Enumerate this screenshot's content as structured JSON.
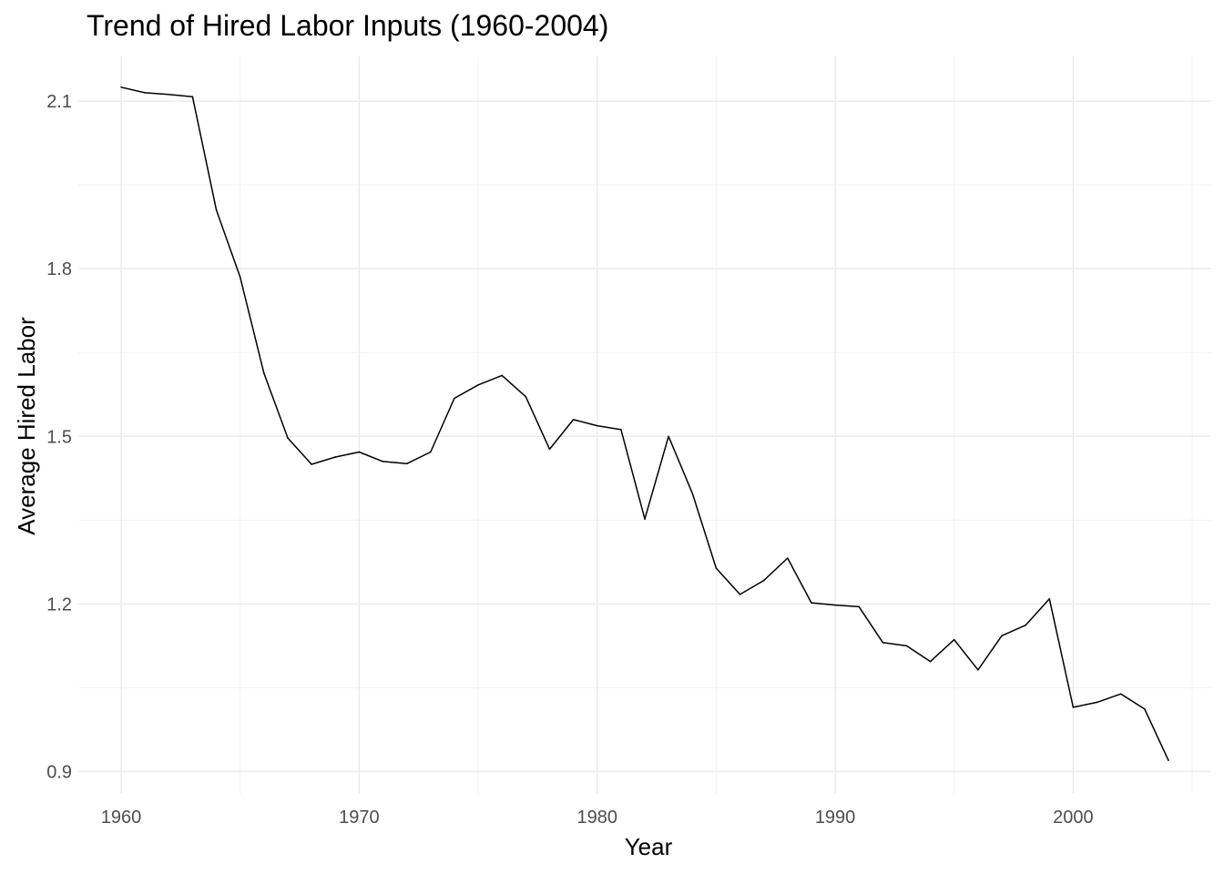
{
  "chart_data": {
    "type": "line",
    "title": "Trend of Hired Labor Inputs (1960-2004)",
    "xlabel": "Year",
    "ylabel": "Average Hired Labor",
    "xlim": [
      1958.2,
      2005.8
    ],
    "ylim": [
      0.86,
      2.18
    ],
    "x_ticks": [
      1960,
      1970,
      1980,
      1990,
      2000
    ],
    "y_ticks": [
      0.9,
      1.2,
      1.5,
      1.8,
      2.1
    ],
    "y_tick_labels": [
      "0.9",
      "1.2",
      "1.5",
      "1.8",
      "2.1"
    ],
    "grid": true,
    "line_color": "#000000",
    "series": [
      {
        "x": [
          1960,
          1961,
          1962,
          1963,
          1964,
          1965,
          1966,
          1967,
          1968,
          1969,
          1970,
          1971,
          1972,
          1973,
          1974,
          1975,
          1976,
          1977,
          1978,
          1979,
          1980,
          1981,
          1982,
          1983,
          1984,
          1985,
          1986,
          1987,
          1988,
          1989,
          1990,
          1991,
          1992,
          1993,
          1994,
          1995,
          1996,
          1997,
          1998,
          1999,
          2000,
          2001,
          2002,
          2003,
          2004
        ],
        "values": [
          2.125,
          2.115,
          2.112,
          2.108,
          1.905,
          1.785,
          1.613,
          1.497,
          1.45,
          1.463,
          1.472,
          1.455,
          1.451,
          1.472,
          1.568,
          1.592,
          1.609,
          1.571,
          1.477,
          1.53,
          1.519,
          1.512,
          1.352,
          1.5,
          1.398,
          1.264,
          1.217,
          1.242,
          1.282,
          1.202,
          1.198,
          1.195,
          1.131,
          1.125,
          1.097,
          1.136,
          1.082,
          1.143,
          1.162,
          1.209,
          1.015,
          1.024,
          1.039,
          1.012,
          0.92
        ]
      }
    ]
  }
}
